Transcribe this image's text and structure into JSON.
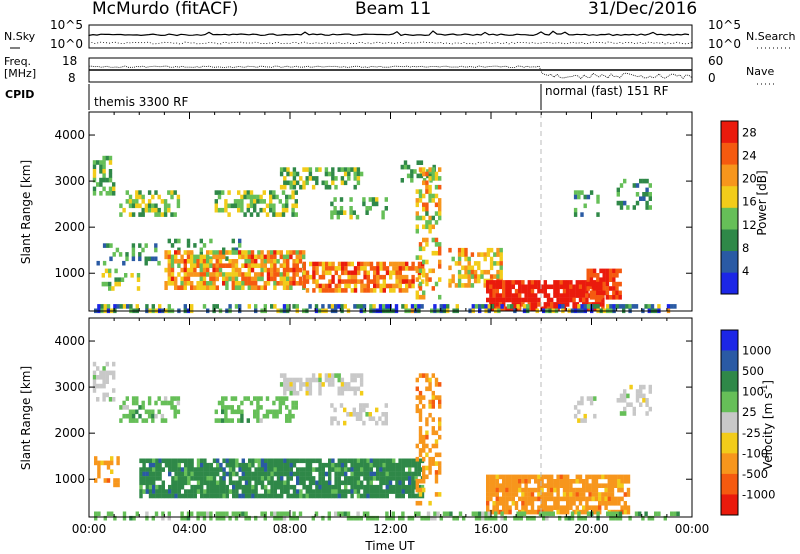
{
  "header": {
    "title": "McMurdo (fitACF)",
    "beam": "Beam 11",
    "date": "31/Dec/2016"
  },
  "summary": {
    "nsky_label": "N.Sky",
    "nsearch_label": "N.Search",
    "freq_label_line1": "Freq.",
    "freq_label_line2": "[MHz]",
    "nave_label": "Nave",
    "cpid_label": "CPID",
    "noise_ticks_left": [
      "10^5",
      "10^0"
    ],
    "noise_ticks_right": [
      "10^5",
      "10^0"
    ],
    "freq_ticks": [
      "18",
      "8"
    ],
    "nave_ticks": [
      "60",
      "0"
    ],
    "cpid_segments": [
      {
        "label": "themis 3300 RF",
        "start_hour": 0,
        "end_hour": 18
      },
      {
        "label": "normal (fast) 151 RF",
        "start_hour": 18,
        "end_hour": 24
      }
    ]
  },
  "chart_data": [
    {
      "type": "heatmap",
      "panel": "power",
      "ylabel": "Slant Range [km]",
      "ylim": [
        180,
        4500
      ],
      "yticks": [
        1000,
        2000,
        3000,
        4000
      ],
      "xlim": [
        0,
        24
      ],
      "colorbar": {
        "label": "Power [dB]",
        "ticks": [
          4,
          8,
          12,
          16,
          20,
          24,
          28
        ],
        "range": [
          0,
          30
        ],
        "colors": [
          "#1c26e6",
          "#2a5aa4",
          "#2f8848",
          "#66bf58",
          "#f2cc1a",
          "#f7961c",
          "#f55a10",
          "#ea1a0c"
        ]
      },
      "regions": [
        {
          "x": [
            0.15,
            1.0
          ],
          "y": [
            2700,
            3550
          ],
          "level": 12,
          "spread": 4,
          "density": 0.55
        },
        {
          "x": [
            1.2,
            3.6
          ],
          "y": [
            2250,
            2800
          ],
          "level": 14,
          "spread": 5,
          "density": 0.5
        },
        {
          "x": [
            5.0,
            8.2
          ],
          "y": [
            2300,
            2800
          ],
          "level": 13,
          "spread": 5,
          "density": 0.5
        },
        {
          "x": [
            7.6,
            10.8
          ],
          "y": [
            2850,
            3300
          ],
          "level": 13,
          "spread": 5,
          "density": 0.5
        },
        {
          "x": [
            9.6,
            11.8
          ],
          "y": [
            2250,
            2650
          ],
          "level": 12,
          "spread": 4,
          "density": 0.4
        },
        {
          "x": [
            12.4,
            13.8
          ],
          "y": [
            3000,
            3450
          ],
          "level": 12,
          "spread": 4,
          "density": 0.4
        },
        {
          "x": [
            0.3,
            2.8
          ],
          "y": [
            1200,
            1650
          ],
          "level": 10,
          "spread": 4,
          "density": 0.3
        },
        {
          "x": [
            3.0,
            6.0
          ],
          "y": [
            1350,
            1750
          ],
          "level": 11,
          "spread": 4,
          "density": 0.35
        },
        {
          "x": [
            0.5,
            2.0
          ],
          "y": [
            700,
            1100
          ],
          "level": 14,
          "spread": 5,
          "density": 0.35
        },
        {
          "x": [
            3.0,
            8.5
          ],
          "y": [
            700,
            1500
          ],
          "level": 20,
          "spread": 7,
          "density": 0.75
        },
        {
          "x": [
            8.5,
            13.3
          ],
          "y": [
            600,
            1250
          ],
          "level": 22,
          "spread": 6,
          "density": 0.75
        },
        {
          "x": [
            13.0,
            14.0
          ],
          "y": [
            500,
            3300
          ],
          "level": 18,
          "spread": 7,
          "density": 0.45
        },
        {
          "x": [
            14.3,
            16.4
          ],
          "y": [
            750,
            1550
          ],
          "level": 18,
          "spread": 6,
          "density": 0.55
        },
        {
          "x": [
            15.8,
            20.5
          ],
          "y": [
            250,
            850
          ],
          "level": 28,
          "spread": 3,
          "density": 0.85
        },
        {
          "x": [
            19.8,
            21.2
          ],
          "y": [
            500,
            1100
          ],
          "level": 27,
          "spread": 3,
          "density": 0.8
        },
        {
          "x": [
            19.3,
            20.2
          ],
          "y": [
            2300,
            2800
          ],
          "level": 10,
          "spread": 4,
          "density": 0.35
        },
        {
          "x": [
            21.0,
            22.3
          ],
          "y": [
            2400,
            3050
          ],
          "level": 10,
          "spread": 4,
          "density": 0.35
        },
        {
          "x": [
            0.2,
            23.5
          ],
          "y": [
            180,
            330
          ],
          "level": 10,
          "spread": 9,
          "density": 0.55
        }
      ]
    },
    {
      "type": "heatmap",
      "panel": "velocity",
      "ylabel": "Slant Range [km]",
      "xlabel": "Time UT",
      "ylim": [
        180,
        4500
      ],
      "yticks": [
        1000,
        2000,
        3000,
        4000
      ],
      "xlim": [
        0,
        24
      ],
      "xtick_labels": [
        "00:00",
        "04:00",
        "08:00",
        "12:00",
        "16:00",
        "20:00",
        "00:00"
      ],
      "colorbar": {
        "label": "Velocity [m s^-1]",
        "ticks": [
          "1000",
          "500",
          "100",
          "25",
          "-25",
          "-100",
          "-500",
          "-1000"
        ],
        "colors": [
          "#1c26e6",
          "#2a5aa4",
          "#2f8848",
          "#66bf58",
          "#c8c8c8",
          "#f2cc1a",
          "#f7961c",
          "#f55a10",
          "#ea1a0c"
        ]
      },
      "regions": [
        {
          "x": [
            0.15,
            1.0
          ],
          "y": [
            2700,
            3550
          ],
          "cls": 4,
          "density": 0.55
        },
        {
          "x": [
            1.2,
            3.6
          ],
          "y": [
            2250,
            2800
          ],
          "cls": 3,
          "density": 0.45
        },
        {
          "x": [
            5.0,
            8.2
          ],
          "y": [
            2300,
            2800
          ],
          "cls": 3,
          "density": 0.45
        },
        {
          "x": [
            7.6,
            10.8
          ],
          "y": [
            2850,
            3300
          ],
          "cls": 4,
          "density": 0.6
        },
        {
          "x": [
            9.6,
            11.8
          ],
          "y": [
            2250,
            2650
          ],
          "cls": 4,
          "density": 0.4
        },
        {
          "x": [
            0.2,
            1.2
          ],
          "y": [
            900,
            1500
          ],
          "cls": 6,
          "density": 0.4
        },
        {
          "x": [
            2.0,
            13.3
          ],
          "y": [
            600,
            1450
          ],
          "cls": 2,
          "density": 0.85
        },
        {
          "x": [
            13.0,
            14.0
          ],
          "y": [
            500,
            3300
          ],
          "cls": 6,
          "density": 0.45
        },
        {
          "x": [
            15.8,
            21.5
          ],
          "y": [
            250,
            1100
          ],
          "cls": 6,
          "density": 0.8
        },
        {
          "x": [
            19.3,
            20.2
          ],
          "y": [
            2300,
            2800
          ],
          "cls": 4,
          "density": 0.35
        },
        {
          "x": [
            21.0,
            22.3
          ],
          "y": [
            2400,
            3050
          ],
          "cls": 4,
          "density": 0.35
        },
        {
          "x": [
            0.2,
            23.5
          ],
          "y": [
            180,
            300
          ],
          "cls": 3,
          "density": 0.5
        }
      ]
    }
  ]
}
